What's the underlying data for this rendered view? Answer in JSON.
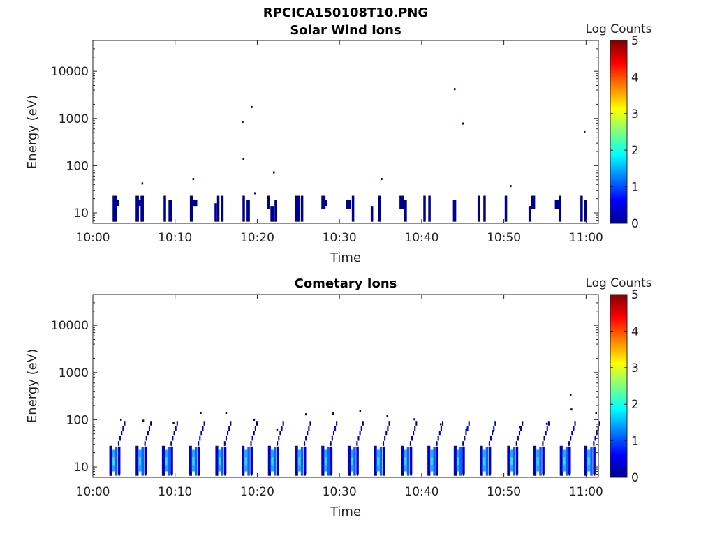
{
  "figure": {
    "title": "RPCICA150108T10.PNG"
  },
  "chart_data": [
    {
      "type": "heatmap",
      "title": "Solar Wind Ions",
      "xlabel": "Time",
      "ylabel": "Energy (eV)",
      "x_ticks": [
        "10:00",
        "10:10",
        "10:20",
        "10:30",
        "10:40",
        "10:50",
        "11:00"
      ],
      "y_scale": "log",
      "y_ticks": [
        "10",
        "100",
        "1000",
        "10000"
      ],
      "ylim": [
        6,
        45000
      ],
      "xlim_minutes": [
        0,
        61.5
      ],
      "colorbar": {
        "label": "Log Counts",
        "ticks": [
          "0",
          "1",
          "2",
          "3",
          "4",
          "5"
        ],
        "range": [
          0,
          5
        ],
        "colormap": "jet"
      },
      "cells": [
        [
          2.4,
          0.5,
          6.5,
          23
        ],
        [
          2.7,
          0.5,
          14,
          19
        ],
        [
          5.2,
          0.4,
          6.5,
          23
        ],
        [
          5.4,
          0.6,
          14,
          19
        ],
        [
          5.8,
          0.4,
          6.5,
          23
        ],
        [
          8.6,
          0.3,
          6.5,
          23
        ],
        [
          9.2,
          0.4,
          6.5,
          19
        ],
        [
          11.8,
          0.4,
          6.5,
          23
        ],
        [
          12.2,
          0.5,
          14,
          19
        ],
        [
          14.8,
          0.3,
          6.5,
          16
        ],
        [
          15.1,
          0.3,
          6.5,
          23
        ],
        [
          15.6,
          0.3,
          6.5,
          23
        ],
        [
          18.2,
          0.3,
          6.5,
          23
        ],
        [
          18.7,
          0.4,
          6.5,
          19
        ],
        [
          21.2,
          0.3,
          12,
          23
        ],
        [
          21.6,
          0.4,
          6.5,
          14
        ],
        [
          22.1,
          0.3,
          6.5,
          19
        ],
        [
          24.6,
          0.6,
          6.5,
          23
        ],
        [
          25.3,
          0.3,
          6.5,
          23
        ],
        [
          27.8,
          0.5,
          12,
          23
        ],
        [
          28.2,
          0.3,
          14,
          19
        ],
        [
          30.8,
          0.6,
          12,
          19
        ],
        [
          31.5,
          0.3,
          6.5,
          23
        ],
        [
          33.8,
          0.3,
          6.5,
          14
        ],
        [
          34.7,
          0.3,
          6.5,
          23
        ],
        [
          37.3,
          0.5,
          12,
          23
        ],
        [
          37.8,
          0.4,
          6.5,
          19
        ],
        [
          40.2,
          0.3,
          6.5,
          23
        ],
        [
          40.8,
          0.3,
          6.5,
          23
        ],
        [
          43.8,
          0.4,
          6.5,
          19
        ],
        [
          46.8,
          0.3,
          6.5,
          23
        ],
        [
          47.5,
          0.3,
          6.5,
          23
        ],
        [
          50.1,
          0.3,
          6.5,
          23
        ],
        [
          53.3,
          0.5,
          12,
          23
        ],
        [
          53.0,
          0.3,
          6.5,
          14
        ],
        [
          56.2,
          0.6,
          12,
          19
        ],
        [
          56.7,
          0.3,
          6.5,
          23
        ],
        [
          59.3,
          0.3,
          6.5,
          23
        ],
        [
          59.8,
          0.3,
          6.5,
          19
        ]
      ],
      "points": [
        [
          6.0,
          42
        ],
        [
          12.2,
          52
        ],
        [
          18.2,
          850
        ],
        [
          18.3,
          140
        ],
        [
          19.3,
          1750
        ],
        [
          19.7,
          26
        ],
        [
          22.0,
          72
        ],
        [
          35.1,
          52
        ],
        [
          44.0,
          4200
        ],
        [
          45.0,
          780
        ],
        [
          50.8,
          37
        ],
        [
          59.8,
          530
        ]
      ]
    },
    {
      "type": "heatmap",
      "title": "Cometary Ions",
      "xlabel": "Time",
      "ylabel": "Energy (eV)",
      "x_ticks": [
        "10:00",
        "10:10",
        "10:20",
        "10:30",
        "10:40",
        "10:50",
        "11:00"
      ],
      "y_scale": "log",
      "y_ticks": [
        "10",
        "100",
        "1000",
        "10000"
      ],
      "ylim": [
        6,
        45000
      ],
      "xlim_minutes": [
        0,
        61.5
      ],
      "colorbar": {
        "label": "Log Counts",
        "ticks": [
          "0",
          "1",
          "2",
          "3",
          "4",
          "5"
        ],
        "range": [
          0,
          5
        ],
        "colormap": "jet"
      },
      "cycles_start_minutes": [
        2.0,
        5.2,
        8.4,
        11.7,
        14.9,
        18.1,
        21.3,
        24.6,
        27.8,
        31.0,
        34.2,
        37.5,
        40.7,
        43.9,
        47.1,
        50.4,
        53.6,
        56.8,
        59.8
      ],
      "points": [
        [
          3.4,
          100
        ],
        [
          6.1,
          95
        ],
        [
          9.8,
          85
        ],
        [
          13.1,
          140
        ],
        [
          16.2,
          140
        ],
        [
          19.6,
          100
        ],
        [
          22.4,
          62
        ],
        [
          25.9,
          130
        ],
        [
          29.2,
          135
        ],
        [
          32.5,
          155
        ],
        [
          35.8,
          118
        ],
        [
          39.1,
          102
        ],
        [
          42.3,
          80
        ],
        [
          45.4,
          62
        ],
        [
          48.7,
          58
        ],
        [
          51.9,
          70
        ],
        [
          55.2,
          82
        ],
        [
          58.2,
          165
        ],
        [
          58.1,
          330
        ],
        [
          61.2,
          140
        ]
      ]
    }
  ]
}
